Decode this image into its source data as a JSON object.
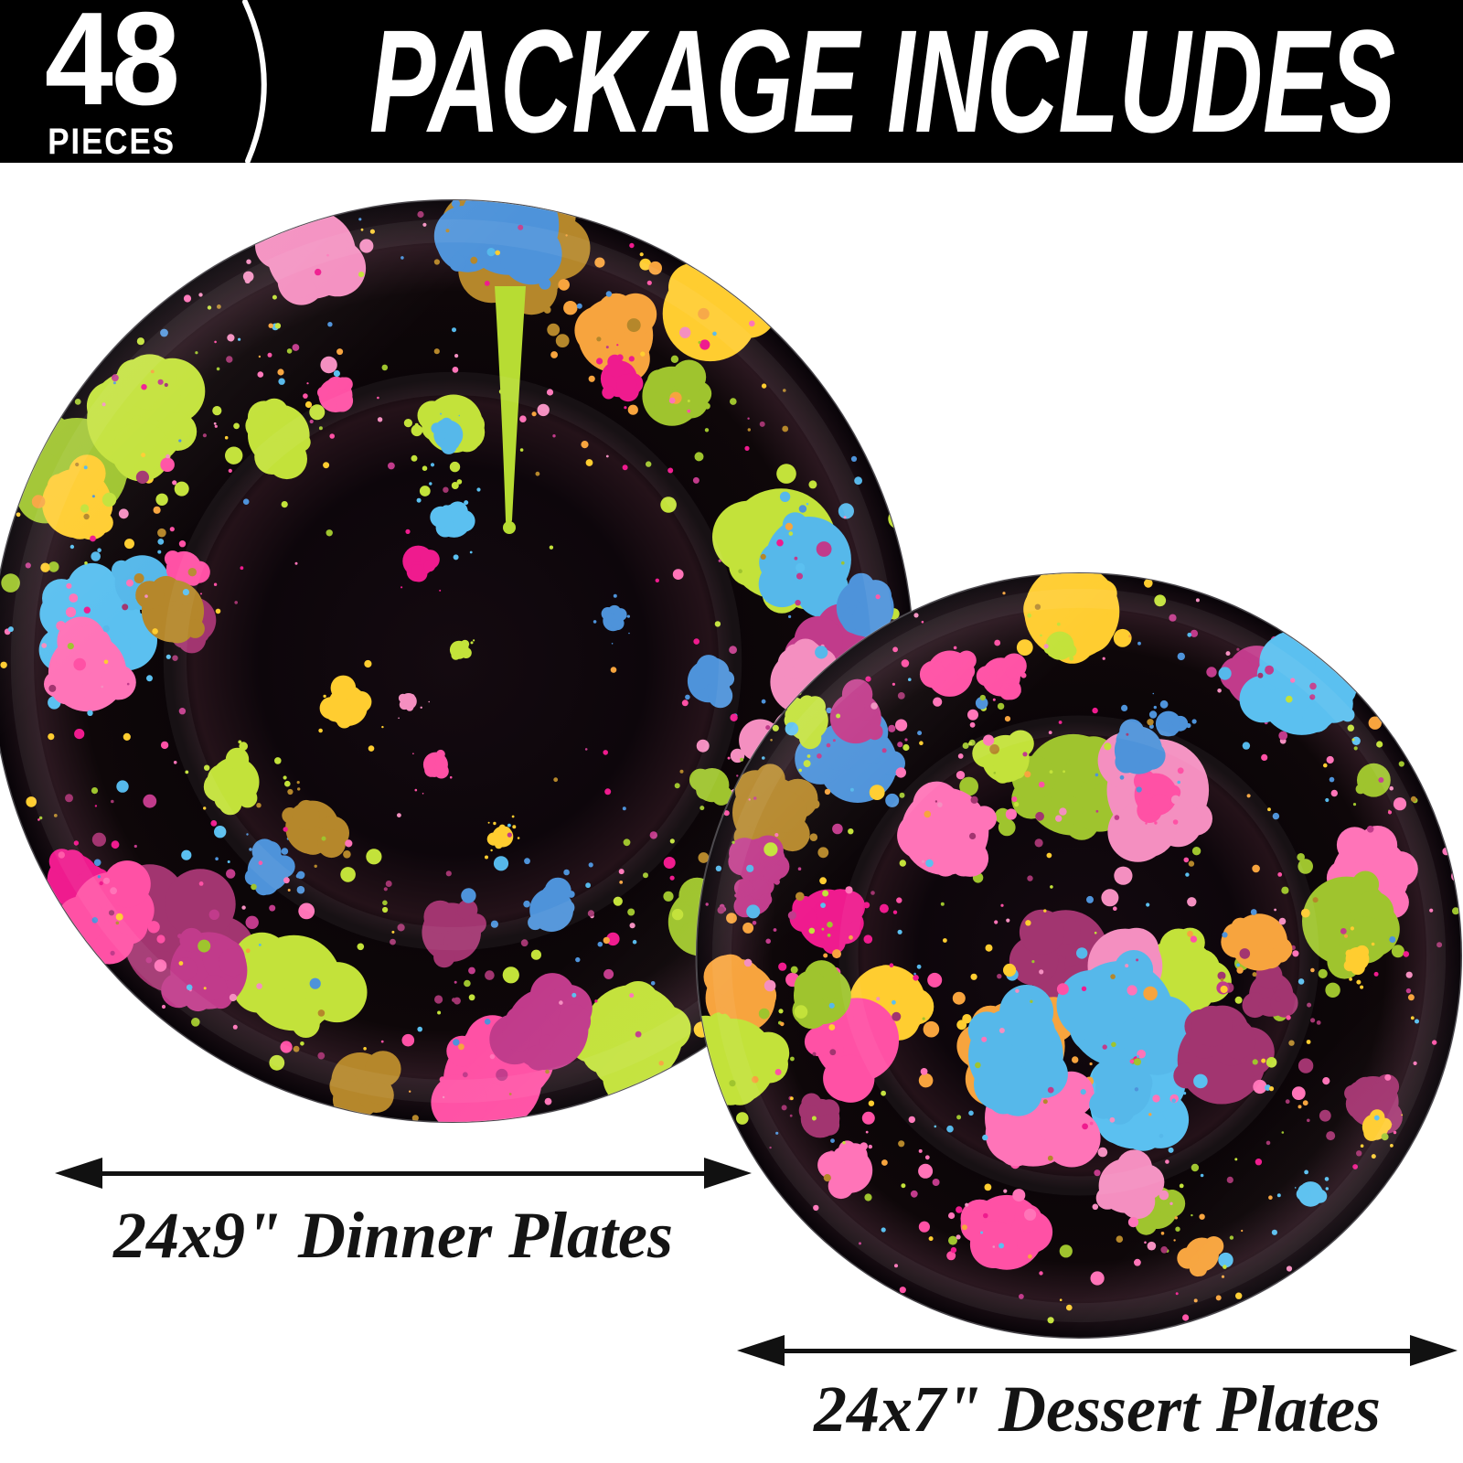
{
  "header": {
    "piece_count": "48",
    "piece_count_unit": "PIECES",
    "title": "PACKAGE INCLUDES",
    "background_color": "#000000",
    "text_color": "#ffffff"
  },
  "plates": [
    {
      "name": "Dinner Plates",
      "quantity": "24",
      "size": "9\"",
      "label": "24x9\" Dinner Plates",
      "pattern": "neon-splatter-rim-concentrated",
      "base_color": "#0c0609"
    },
    {
      "name": "Dessert Plates",
      "quantity": "24",
      "size": "7\"",
      "label": "24x7\" Dessert Plates",
      "pattern": "neon-splatter-all-over",
      "base_color": "#0c0609"
    }
  ],
  "splatter_palette": [
    "#ff51a5",
    "#5bc0f0",
    "#c3e23a",
    "#ef1b8e",
    "#f7a43e",
    "#4e93da",
    "#ffcd30",
    "#a23570",
    "#9fc42e",
    "#f48fc0",
    "#b5872b",
    "#56b8ea",
    "#c13b8b",
    "#ff74b8"
  ],
  "arrow_color": "#111111",
  "label_color": "#141414"
}
